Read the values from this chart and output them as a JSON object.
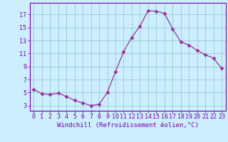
{
  "x": [
    0,
    1,
    2,
    3,
    4,
    5,
    6,
    7,
    8,
    9,
    10,
    11,
    12,
    13,
    14,
    15,
    16,
    17,
    18,
    19,
    20,
    21,
    22,
    23
  ],
  "y": [
    5.5,
    4.8,
    4.7,
    4.9,
    4.4,
    3.8,
    3.4,
    3.0,
    3.2,
    5.0,
    8.2,
    11.3,
    13.5,
    15.2,
    17.6,
    17.5,
    17.2,
    14.8,
    12.8,
    12.3,
    11.5,
    10.8,
    10.3,
    8.7
  ],
  "line_color": "#993399",
  "marker": "D",
  "marker_size": 2.5,
  "bg_color": "#cceeff",
  "grid_color": "#99cccc",
  "xlabel": "Windchill (Refroidissement éolien,°C)",
  "xlim": [
    -0.5,
    23.5
  ],
  "ylim": [
    2.2,
    18.8
  ],
  "yticks": [
    3,
    5,
    7,
    9,
    11,
    13,
    15,
    17
  ],
  "xticks": [
    0,
    1,
    2,
    3,
    4,
    5,
    6,
    7,
    8,
    9,
    10,
    11,
    12,
    13,
    14,
    15,
    16,
    17,
    18,
    19,
    20,
    21,
    22,
    23
  ],
  "axis_color": "#7700aa",
  "tick_color": "#7700aa",
  "label_fontsize": 6.5,
  "tick_fontsize": 6.0,
  "spine_color": "#7700aa"
}
